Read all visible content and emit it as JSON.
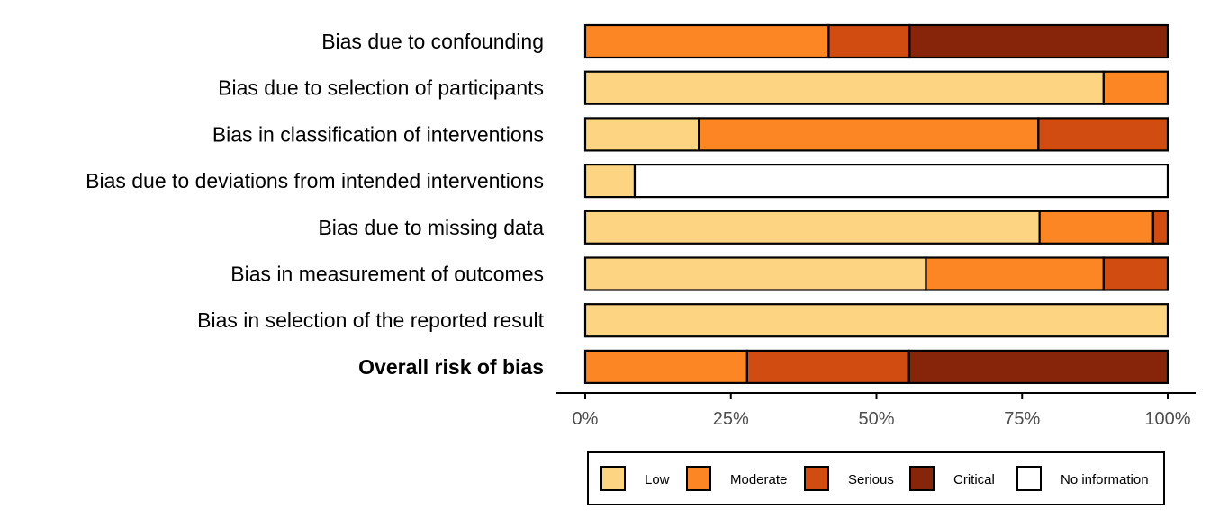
{
  "chart_data": {
    "type": "bar",
    "orientation": "horizontal",
    "stacked": true,
    "categories": [
      "Bias due to confounding",
      "Bias due to selection of participants",
      "Bias in classification of interventions",
      "Bias due to deviations from intended interventions",
      "Bias due to missing data",
      "Bias in measurement of outcomes",
      "Bias in selection of the reported result",
      "Overall risk of bias"
    ],
    "bold_categories": [
      "Overall risk of bias"
    ],
    "series": [
      {
        "name": "Low",
        "color": "#FDD481",
        "values": [
          0,
          89,
          19.5,
          8.5,
          78,
          58.5,
          100,
          0
        ]
      },
      {
        "name": "Moderate",
        "color": "#FC8623",
        "values": [
          41.8,
          11,
          58.3,
          0,
          19.5,
          30.5,
          0,
          27.8
        ]
      },
      {
        "name": "Serious",
        "color": "#D14C11",
        "values": [
          13.9,
          0,
          22.2,
          0,
          2.5,
          11,
          0,
          27.8
        ]
      },
      {
        "name": "Critical",
        "color": "#87250A",
        "values": [
          44.3,
          0,
          0,
          0,
          0,
          0,
          0,
          44.4
        ]
      },
      {
        "name": "No information",
        "color": "#FFFFFF",
        "values": [
          0,
          0,
          0,
          91.5,
          0,
          0,
          0,
          0
        ]
      }
    ],
    "x_ticks": [
      "0%",
      "25%",
      "50%",
      "75%",
      "100%"
    ],
    "x_tick_values": [
      0,
      25,
      50,
      75,
      100
    ],
    "xlim": [
      0,
      100
    ],
    "unit": "%",
    "grid": false,
    "legend": "bottom"
  }
}
